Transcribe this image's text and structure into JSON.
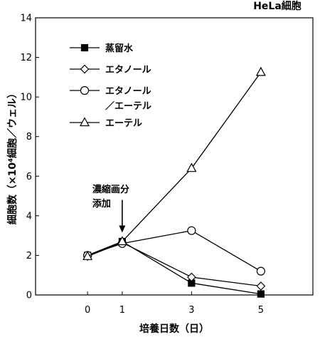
{
  "chart_data": {
    "type": "line",
    "subtitle": "HeLa細胞",
    "ylabel": "細胞数（×10⁴細胞／ウェル）",
    "xlabel": "培養日数（日）",
    "x": [
      0,
      1,
      3,
      5
    ],
    "xlim": [
      -1.5,
      6.5
    ],
    "ylim": [
      0,
      14
    ],
    "yticks": [
      0,
      2,
      4,
      6,
      8,
      10,
      12,
      14
    ],
    "grid": false,
    "legend_position": "top-left",
    "series": [
      {
        "name": "蒸留水",
        "marker": "filled-square",
        "values": [
          2.0,
          2.7,
          0.6,
          0.05
        ]
      },
      {
        "name": "エタノール",
        "marker": "open-diamond",
        "values": [
          1.95,
          2.65,
          0.9,
          0.45
        ]
      },
      {
        "name": "エタノール／エーテル",
        "name_lines": [
          "エタノール",
          "／エーテル"
        ],
        "marker": "open-circle",
        "values": [
          2.0,
          2.6,
          3.25,
          1.2
        ]
      },
      {
        "name": "エーテル",
        "marker": "open-triangle",
        "values": [
          1.95,
          2.7,
          6.4,
          11.25
        ]
      }
    ],
    "annotation": {
      "lines": [
        "濃縮画分",
        "添加"
      ],
      "x": 1,
      "arrow_from_y": 4.8,
      "arrow_to_y": 3.15
    }
  }
}
